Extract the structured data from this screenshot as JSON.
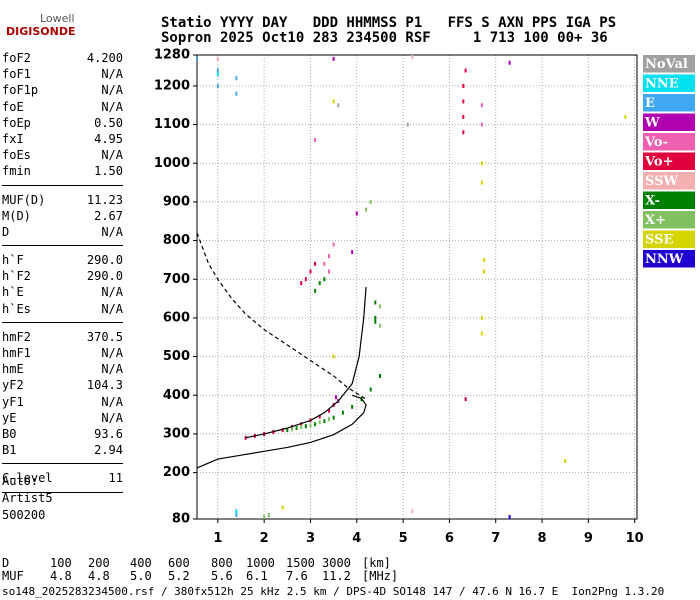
{
  "logo": {
    "top": "Lowell",
    "bottom": "DIGISONDE"
  },
  "header": {
    "line1": "Statio YYYY DAY   DDD HHMMSS P1   FFS S AXN PPS IGA PS",
    "line2": "Sopron 2025 Oct10 283 234500 RSF     1 713 100 00+ 36"
  },
  "parameters": [
    {
      "rows": [
        [
          "foF2",
          "4.200"
        ],
        [
          "foF1",
          "N/A"
        ],
        [
          "foF1p",
          "N/A"
        ],
        [
          "foE",
          "N/A"
        ],
        [
          "foEp",
          "0.50"
        ],
        [
          "fxI",
          "4.95"
        ],
        [
          "foEs",
          "N/A"
        ],
        [
          "fmin",
          "1.50"
        ]
      ]
    },
    {
      "rows": [
        [
          "MUF(D)",
          "11.23"
        ],
        [
          "M(D)",
          "2.67"
        ],
        [
          "D",
          "N/A"
        ]
      ]
    },
    {
      "rows": [
        [
          "h`F",
          "290.0"
        ],
        [
          "h`F2",
          "290.0"
        ],
        [
          "h`E",
          "N/A"
        ],
        [
          "h`Es",
          "N/A"
        ]
      ]
    },
    {
      "rows": [
        [
          "hmF2",
          "370.5"
        ],
        [
          "hmF1",
          "N/A"
        ],
        [
          "hmE",
          "N/A"
        ],
        [
          "yF2",
          "104.3"
        ],
        [
          "yF1",
          "N/A"
        ],
        [
          "yE",
          "N/A"
        ],
        [
          "B0",
          "93.6"
        ],
        [
          "B1",
          "2.94"
        ]
      ]
    },
    {
      "rows": [
        [
          "C-level",
          "11"
        ]
      ]
    }
  ],
  "auto": [
    "Auto:",
    "Artist5",
    "500200"
  ],
  "muf_table": {
    "d_label": "D",
    "d_values": [
      "100",
      "200",
      "400",
      "600",
      "800",
      "1000",
      "1500",
      "3000"
    ],
    "d_unit": "[km]",
    "muf_label": "MUF",
    "muf_values": [
      "4.8",
      "4.8",
      "5.0",
      "5.2",
      "5.6",
      "6.1",
      "7.6",
      "11.2"
    ],
    "muf_unit": "[MHz]"
  },
  "footer": "so148_2025283234500.rsf / 380fx512h 25 kHz 2.5 km / DPS-4D SO148 147 / 47.6 N 16.7 E  Ion2Png 1.3.20",
  "chart_data": {
    "type": "scatter",
    "xlim": [
      0.55,
      10.05
    ],
    "xticks": [
      1,
      2,
      3,
      4,
      5,
      6,
      7,
      8,
      9,
      10
    ],
    "ylim": [
      80,
      1280
    ],
    "yticks": [
      80,
      200,
      300,
      400,
      500,
      600,
      700,
      800,
      900,
      1000,
      1100,
      1200,
      1280
    ],
    "grid": true,
    "legend": "right",
    "series": [
      {
        "name": "NoVal",
        "color": "#a0a0a0",
        "x": [
          3.6,
          5.1
        ],
        "values": [
          1150,
          1100
        ]
      },
      {
        "name": "NNE",
        "color": "#00e0f0",
        "x": [
          1.0,
          1.4
        ],
        "values": [
          1230,
          100
        ]
      },
      {
        "name": "E",
        "color": "#40a8f0",
        "x": [
          0.55,
          1.0,
          1.0,
          1.4,
          1.4,
          1.4
        ],
        "values": [
          1270,
          1200,
          1240,
          1220,
          1180,
          90
        ]
      },
      {
        "name": "W",
        "color": "#b000b0",
        "x": [
          3.55,
          3.6,
          3.9,
          4.0,
          3.5,
          7.3
        ],
        "values": [
          395,
          385,
          770,
          870,
          1270,
          1260
        ]
      },
      {
        "name": "Vo-",
        "color": "#f060b0",
        "x": [
          3.3,
          3.4,
          3.5,
          3.4,
          6.7,
          6.7,
          3.1
        ],
        "values": [
          740,
          760,
          790,
          720,
          1100,
          1150,
          1060
        ]
      },
      {
        "name": "Vo+",
        "color": "#e0003c",
        "x": [
          1.6,
          1.8,
          2.0,
          2.2,
          2.4,
          2.6,
          2.8,
          3.0,
          3.2,
          3.4,
          3.5,
          2.8,
          2.9,
          3.0,
          3.1,
          6.3,
          6.3,
          6.3,
          6.3,
          6.35,
          6.35
        ],
        "values": [
          290,
          295,
          300,
          305,
          310,
          318,
          325,
          335,
          345,
          360,
          375,
          690,
          700,
          720,
          740,
          1080,
          1120,
          1160,
          1200,
          1240,
          390
        ]
      },
      {
        "name": "SSW",
        "color": "#f4b0b0",
        "x": [
          5.2,
          5.2,
          1.0
        ],
        "values": [
          1275,
          100,
          1270
        ]
      },
      {
        "name": "X-",
        "color": "#008000",
        "x": [
          2.5,
          2.7,
          2.9,
          3.1,
          3.3,
          3.5,
          3.7,
          3.9,
          4.1,
          4.3,
          4.5,
          3.1,
          3.2,
          3.3,
          4.4,
          4.4,
          4.4
        ],
        "values": [
          310,
          315,
          320,
          325,
          333,
          342,
          355,
          370,
          390,
          415,
          450,
          670,
          690,
          700,
          600,
          640,
          590
        ]
      },
      {
        "name": "X+",
        "color": "#80c060",
        "x": [
          2.6,
          2.8,
          3.0,
          3.2,
          3.4,
          4.2,
          4.3,
          4.5,
          4.5,
          2.0,
          2.1
        ],
        "values": [
          312,
          318,
          322,
          330,
          338,
          880,
          900,
          580,
          630,
          85,
          90
        ]
      },
      {
        "name": "SSE",
        "color": "#d4d400",
        "x": [
          6.7,
          6.7,
          6.75,
          6.75,
          6.7,
          6.7,
          3.5,
          3.5,
          8.5,
          9.8,
          2.4
        ],
        "values": [
          950,
          1000,
          720,
          750,
          560,
          600,
          500,
          1160,
          230,
          1120,
          110
        ]
      },
      {
        "name": "NNW",
        "color": "#2000d0",
        "x": [
          7.3
        ],
        "values": [
          85
        ]
      }
    ],
    "curves": [
      {
        "color": "#000000",
        "dashed": false,
        "x": [
          0.55,
          1,
          1.5,
          2,
          2.5,
          3,
          3.5,
          3.9,
          4.15,
          4.2,
          4.1,
          3.9
        ],
        "values": [
          212,
          235,
          245,
          255,
          265,
          278,
          298,
          325,
          355,
          375,
          392,
          400
        ]
      },
      {
        "color": "#000000",
        "dashed": false,
        "x": [
          1.6,
          2,
          2.5,
          3,
          3.3,
          3.6,
          3.9,
          4.05,
          4.15,
          4.2
        ],
        "values": [
          290,
          300,
          315,
          335,
          355,
          385,
          430,
          500,
          600,
          680
        ]
      },
      {
        "color": "#000000",
        "dashed": true,
        "x": [
          0.55,
          0.8,
          1,
          1.3,
          1.6,
          2,
          2.5,
          3,
          3.5,
          3.8,
          4.0,
          4.2
        ],
        "values": [
          820,
          740,
          700,
          650,
          610,
          570,
          530,
          490,
          450,
          420,
          405,
          390
        ]
      }
    ]
  }
}
